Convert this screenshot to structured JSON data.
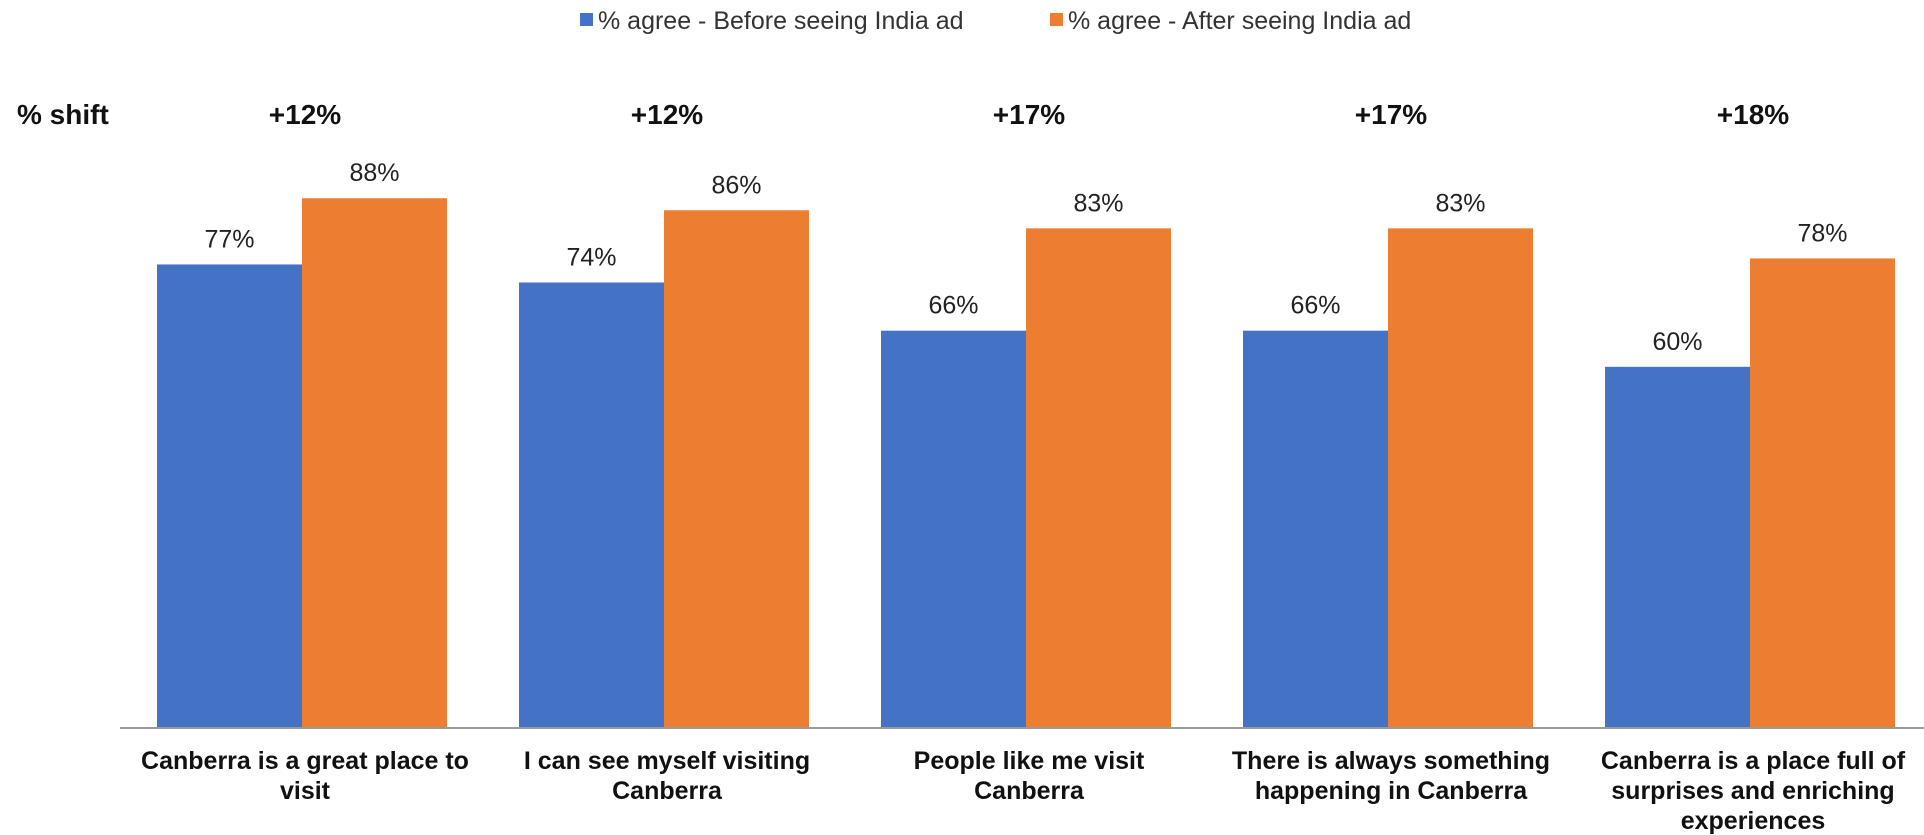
{
  "chart_data": {
    "type": "bar",
    "title": "",
    "xlabel": "",
    "ylabel": "",
    "ylim": [
      0,
      100
    ],
    "grid": false,
    "legend_position": "top-center",
    "categories": [
      "Canberra is a great place to visit",
      "I can see myself visiting Canberra",
      "People like me visit Canberra",
      "There is always something happening in Canberra",
      "Canberra is a place full of surprises and enriching experiences"
    ],
    "category_lines": [
      [
        "Canberra is a great place to",
        "visit"
      ],
      [
        "I can see myself visiting",
        "Canberra"
      ],
      [
        "People like me visit",
        "Canberra"
      ],
      [
        "There is always something",
        "happening in Canberra"
      ],
      [
        "Canberra is a place full of",
        "surprises and enriching",
        "experiences"
      ]
    ],
    "series": [
      {
        "name": "% agree - Before seeing India ad",
        "color": "#4472C4",
        "values": [
          77,
          74,
          66,
          66,
          60
        ],
        "labels": [
          "77%",
          "74%",
          "66%",
          "66%",
          "60%"
        ]
      },
      {
        "name": "% agree - After seeing India ad",
        "color": "#ED7D31",
        "values": [
          88,
          86,
          83,
          83,
          78
        ],
        "labels": [
          "88%",
          "86%",
          "83%",
          "83%",
          "78%"
        ]
      }
    ],
    "shift_header": "% shift",
    "shifts": [
      "+12%",
      "+12%",
      "+17%",
      "+17%",
      "+18%"
    ]
  }
}
